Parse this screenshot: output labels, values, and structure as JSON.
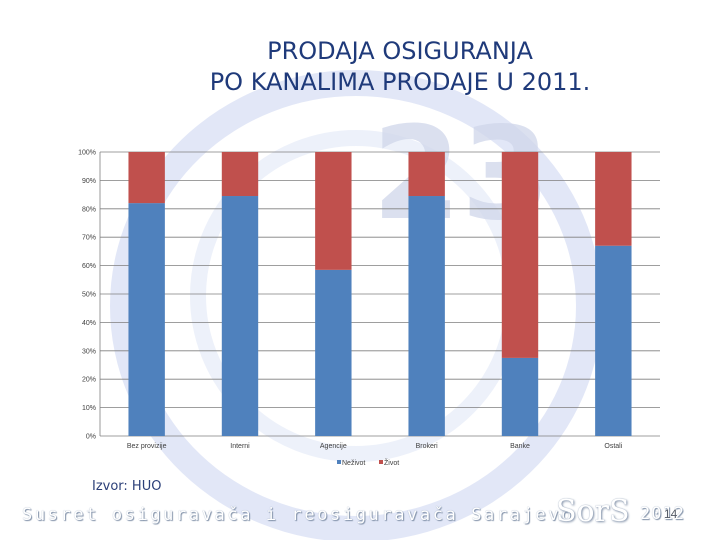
{
  "title": {
    "line1": "PRODAJA OSIGURANJA",
    "line2": "PO KANALIMA PRODAJE U 2011."
  },
  "source": "Izvor: HUO",
  "footer": {
    "text": "Susret osiguravača i reosiguravača Sarajevo",
    "logo": "SorS",
    "year": "2012",
    "page_number": "14"
  },
  "background": {
    "logo_number": "23"
  },
  "chart_data": {
    "type": "bar",
    "stacked": true,
    "categories": [
      "Bez provizije",
      "Interni",
      "Agencije",
      "Brokeri",
      "Banke",
      "Ostali"
    ],
    "series": [
      {
        "name": "Neživot",
        "color": "#4f81bd",
        "values": [
          82,
          84.5,
          58.5,
          84.5,
          27.5,
          67
        ]
      },
      {
        "name": "Život",
        "color": "#c0504d",
        "values": [
          18,
          15.5,
          41.5,
          15.5,
          72.5,
          33
        ]
      }
    ],
    "yticks": [
      "0%",
      "10%",
      "20%",
      "30%",
      "40%",
      "50%",
      "60%",
      "70%",
      "80%",
      "90%",
      "100%"
    ],
    "ylim": [
      0,
      100
    ],
    "grid": true,
    "legend": "bottom"
  }
}
